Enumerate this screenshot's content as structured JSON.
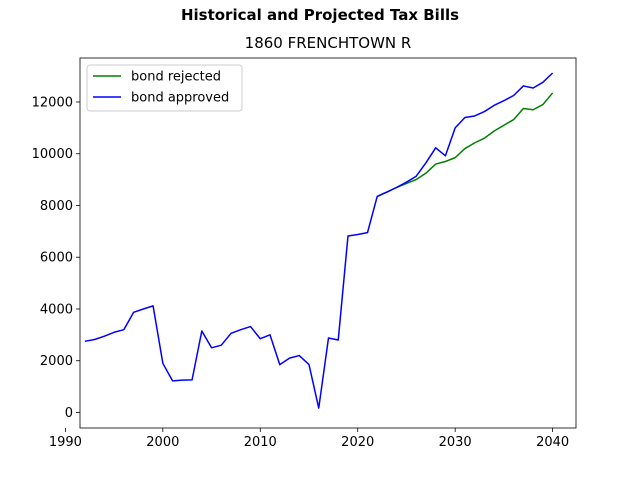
{
  "suptitle": "Historical and Projected Tax Bills",
  "subtitle": "1860 FRENCHTOWN R",
  "chart_data": {
    "type": "line",
    "title": "1860 FRENCHTOWN R",
    "xlabel": "",
    "ylabel": "",
    "xlim": [
      1991.5,
      2042.4
    ],
    "ylim": [
      -600,
      13700
    ],
    "xticks": [
      1990,
      2000,
      2010,
      2020,
      2030,
      2040
    ],
    "yticks": [
      0,
      2000,
      4000,
      6000,
      8000,
      10000,
      12000
    ],
    "grid": false,
    "legend_position": "top-left",
    "series": [
      {
        "name": "bond rejected",
        "color": "#008000",
        "x": [
          2022,
          2023,
          2024,
          2025,
          2026,
          2027,
          2028,
          2029,
          2030,
          2031,
          2032,
          2033,
          2034,
          2035,
          2036,
          2037,
          2038,
          2039,
          2040
        ],
        "y": [
          8350,
          8520,
          8700,
          8850,
          9000,
          9250,
          9600,
          9700,
          9850,
          10200,
          10420,
          10600,
          10880,
          11100,
          11320,
          11750,
          11700,
          11900,
          12350
        ]
      },
      {
        "name": "bond approved",
        "color": "#0000ff",
        "x": [
          1992,
          1993,
          1994,
          1995,
          1996,
          1997,
          1998,
          1999,
          2000,
          2001,
          2002,
          2003,
          2004,
          2005,
          2006,
          2007,
          2008,
          2009,
          2010,
          2011,
          2012,
          2013,
          2014,
          2015,
          2016,
          2017,
          2018,
          2019,
          2020,
          2021,
          2022,
          2023,
          2024,
          2025,
          2026,
          2027,
          2028,
          2029,
          2030,
          2031,
          2032,
          2033,
          2034,
          2035,
          2036,
          2037,
          2038,
          2039,
          2040
        ],
        "y": [
          2750,
          2820,
          2950,
          3100,
          3200,
          3870,
          4000,
          4120,
          1900,
          1220,
          1250,
          1260,
          3150,
          2500,
          2600,
          3060,
          3200,
          3320,
          2850,
          3000,
          1850,
          2100,
          2200,
          1850,
          170,
          2880,
          2800,
          6820,
          6880,
          6950,
          8350,
          8520,
          8700,
          8900,
          9130,
          9650,
          10230,
          9920,
          11000,
          11400,
          11460,
          11630,
          11870,
          12050,
          12250,
          12620,
          12540,
          12760,
          13120
        ]
      }
    ]
  }
}
